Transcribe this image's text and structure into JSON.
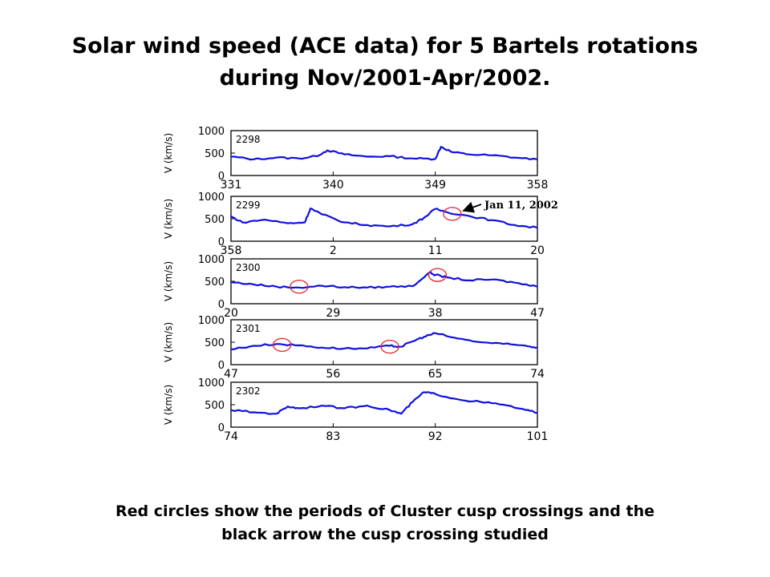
{
  "title_line1": "Solar wind speed (ACE data) for 5 Bartels rotations",
  "title_line2": "during Nov/2001-Apr/2002.",
  "caption_line1": "Red circles show the periods of Cluster cusp crossings and the",
  "caption_line2": "black arrow the cusp crossing studied",
  "colors": {
    "series": "#1010e0",
    "circle": "#e8202a",
    "arrow": "#000000"
  },
  "chart_data": [
    {
      "type": "line",
      "rotation": "2298",
      "ylabel": "V (km/s)",
      "ylim": [
        0,
        1000
      ],
      "yticks": [
        0,
        500,
        1000
      ],
      "xticks": [
        "331",
        "340",
        "349",
        "358"
      ],
      "x": [
        331,
        333,
        335,
        337,
        338.5,
        339.5,
        341,
        343,
        345,
        347,
        349,
        349.5,
        350.5,
        352,
        354,
        356,
        358
      ],
      "values": [
        420,
        360,
        400,
        380,
        430,
        560,
        470,
        420,
        430,
        380,
        370,
        640,
        520,
        470,
        450,
        400,
        360
      ],
      "circles": []
    },
    {
      "type": "line",
      "rotation": "2299",
      "ylabel": "V (km/s)",
      "ylim": [
        0,
        1000
      ],
      "yticks": [
        0,
        500,
        1000
      ],
      "xticks": [
        "358",
        "2",
        "11",
        "20"
      ],
      "x": [
        358,
        359,
        361,
        363,
        364.5,
        365,
        366,
        368,
        370,
        372,
        374,
        375,
        376,
        377,
        379,
        381,
        383,
        385
      ],
      "values": [
        550,
        420,
        480,
        400,
        420,
        730,
        600,
        420,
        360,
        330,
        380,
        520,
        720,
        650,
        560,
        470,
        360,
        300
      ],
      "circles": [
        {
          "x": 377.5,
          "y": 610
        }
      ],
      "annotation": {
        "text": "Jan 11, 2002",
        "x": 377.5,
        "y": 610
      }
    },
    {
      "type": "line",
      "rotation": "2300",
      "ylabel": "V (km/s)",
      "ylim": [
        0,
        1000
      ],
      "yticks": [
        0,
        500,
        1000
      ],
      "xticks": [
        "20",
        "29",
        "38",
        "47"
      ],
      "x": [
        20,
        22,
        24,
        26,
        28,
        30,
        32,
        34,
        36,
        37.5,
        38,
        39,
        41,
        43,
        45,
        47
      ],
      "values": [
        480,
        430,
        380,
        360,
        400,
        370,
        360,
        380,
        390,
        700,
        640,
        590,
        520,
        540,
        470,
        380
      ],
      "circles": [
        {
          "x": 26,
          "y": 380
        },
        {
          "x": 38.2,
          "y": 640
        }
      ]
    },
    {
      "type": "line",
      "rotation": "2301",
      "ylabel": "V (km/s)",
      "ylim": [
        0,
        1000
      ],
      "yticks": [
        0,
        500,
        1000
      ],
      "xticks": [
        "47",
        "56",
        "65",
        "74"
      ],
      "x": [
        47,
        49,
        51,
        53,
        55,
        57,
        59,
        61,
        62,
        63,
        64,
        65,
        67,
        69,
        71,
        73,
        74
      ],
      "values": [
        340,
        420,
        460,
        430,
        380,
        360,
        360,
        420,
        400,
        520,
        620,
        700,
        580,
        500,
        460,
        420,
        380
      ],
      "circles": [
        {
          "x": 51.5,
          "y": 440
        },
        {
          "x": 61,
          "y": 400
        }
      ]
    },
    {
      "type": "line",
      "rotation": "2302",
      "ylabel": "V (km/s)",
      "ylim": [
        0,
        1000
      ],
      "yticks": [
        0,
        500,
        1000
      ],
      "xticks": [
        "74",
        "83",
        "92",
        "101"
      ],
      "x": [
        74,
        76,
        78,
        79,
        80,
        82,
        84,
        86,
        88,
        89,
        90,
        91,
        92,
        94,
        96,
        98,
        100,
        101
      ],
      "values": [
        380,
        330,
        300,
        460,
        420,
        480,
        420,
        480,
        380,
        300,
        560,
        780,
        740,
        620,
        560,
        500,
        380,
        320
      ],
      "circles": []
    }
  ]
}
